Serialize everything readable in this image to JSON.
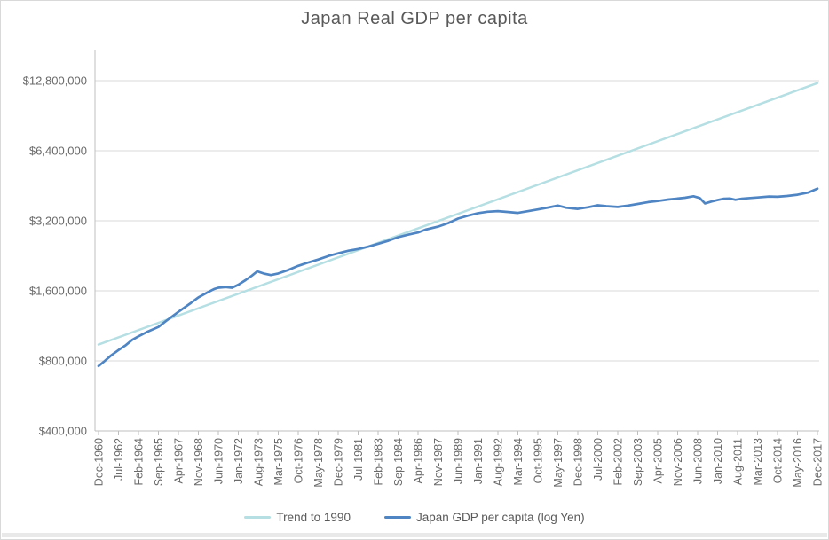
{
  "chart_data": {
    "type": "line",
    "title": "Japan Real GDP per capita",
    "y_axis": {
      "scale": "log2",
      "unit": "$",
      "ticks": [
        {
          "value": 400000,
          "label": "$400,000"
        },
        {
          "value": 800000,
          "label": "$800,000"
        },
        {
          "value": 1600000,
          "label": "$1,600,000"
        },
        {
          "value": 3200000,
          "label": "$3,200,000"
        },
        {
          "value": 6400000,
          "label": "$6,400,000"
        },
        {
          "value": 12800000,
          "label": "$12,800,000"
        }
      ],
      "range": [
        400000,
        17000000
      ],
      "grid": true
    },
    "x_axis": {
      "range": [
        "Dec-1960",
        "Dec-2017"
      ],
      "label_interval_months": 19,
      "total_months": 684,
      "labels": [
        "Dec-1960",
        "Jul-1962",
        "Feb-1964",
        "Sep-1965",
        "Apr-1967",
        "Nov-1968",
        "Jun-1970",
        "Jan-1972",
        "Aug-1973",
        "Mar-1975",
        "Oct-1976",
        "May-1978",
        "Dec-1979",
        "Jul-1981",
        "Feb-1983",
        "Sep-1984",
        "Apr-1986",
        "Nov-1987",
        "Jun-1989",
        "Jan-1991",
        "Aug-1992",
        "Mar-1994",
        "Oct-1995",
        "May-1997",
        "Dec-1998",
        "Jul-2000",
        "Feb-2002",
        "Sep-2003",
        "Apr-2005",
        "Nov-2006",
        "Jun-2008",
        "Jan-2010",
        "Aug-2011",
        "Mar-2013",
        "Oct-2014",
        "May-2016",
        "Dec-2017"
      ]
    },
    "legend_position": "bottom",
    "series": [
      {
        "name": "Trend to 1990",
        "color": "#b5dfe3",
        "shape": "log-linear",
        "points": [
          {
            "month": 0,
            "value": 940000
          },
          {
            "month": 684,
            "value": 12500000
          }
        ]
      },
      {
        "name": "Japan GDP per capita (log Yen)",
        "color": "#4f85c3",
        "shape": "poly",
        "points": [
          {
            "month": 0,
            "value": 760000
          },
          {
            "month": 6,
            "value": 800000
          },
          {
            "month": 12,
            "value": 845000
          },
          {
            "month": 19,
            "value": 890000
          },
          {
            "month": 26,
            "value": 935000
          },
          {
            "month": 32,
            "value": 985000
          },
          {
            "month": 38,
            "value": 1020000
          },
          {
            "month": 46,
            "value": 1065000
          },
          {
            "month": 57,
            "value": 1120000
          },
          {
            "month": 64,
            "value": 1185000
          },
          {
            "month": 76,
            "value": 1300000
          },
          {
            "month": 88,
            "value": 1420000
          },
          {
            "month": 95,
            "value": 1500000
          },
          {
            "month": 103,
            "value": 1570000
          },
          {
            "month": 110,
            "value": 1630000
          },
          {
            "month": 114,
            "value": 1650000
          },
          {
            "month": 121,
            "value": 1660000
          },
          {
            "month": 127,
            "value": 1650000
          },
          {
            "month": 133,
            "value": 1700000
          },
          {
            "month": 140,
            "value": 1780000
          },
          {
            "month": 146,
            "value": 1860000
          },
          {
            "month": 151,
            "value": 1940000
          },
          {
            "month": 157,
            "value": 1900000
          },
          {
            "month": 164,
            "value": 1870000
          },
          {
            "month": 171,
            "value": 1900000
          },
          {
            "month": 181,
            "value": 1970000
          },
          {
            "month": 190,
            "value": 2050000
          },
          {
            "month": 200,
            "value": 2120000
          },
          {
            "month": 209,
            "value": 2180000
          },
          {
            "month": 219,
            "value": 2260000
          },
          {
            "month": 228,
            "value": 2320000
          },
          {
            "month": 238,
            "value": 2380000
          },
          {
            "month": 247,
            "value": 2420000
          },
          {
            "month": 257,
            "value": 2480000
          },
          {
            "month": 266,
            "value": 2550000
          },
          {
            "month": 276,
            "value": 2630000
          },
          {
            "month": 285,
            "value": 2720000
          },
          {
            "month": 295,
            "value": 2790000
          },
          {
            "month": 304,
            "value": 2850000
          },
          {
            "month": 311,
            "value": 2930000
          },
          {
            "month": 323,
            "value": 3020000
          },
          {
            "month": 333,
            "value": 3130000
          },
          {
            "month": 342,
            "value": 3270000
          },
          {
            "month": 352,
            "value": 3370000
          },
          {
            "month": 361,
            "value": 3450000
          },
          {
            "month": 370,
            "value": 3500000
          },
          {
            "month": 380,
            "value": 3520000
          },
          {
            "month": 390,
            "value": 3490000
          },
          {
            "month": 399,
            "value": 3460000
          },
          {
            "month": 409,
            "value": 3520000
          },
          {
            "month": 418,
            "value": 3580000
          },
          {
            "month": 428,
            "value": 3650000
          },
          {
            "month": 437,
            "value": 3720000
          },
          {
            "month": 445,
            "value": 3640000
          },
          {
            "month": 456,
            "value": 3600000
          },
          {
            "month": 466,
            "value": 3660000
          },
          {
            "month": 475,
            "value": 3730000
          },
          {
            "month": 483,
            "value": 3700000
          },
          {
            "month": 494,
            "value": 3670000
          },
          {
            "month": 504,
            "value": 3720000
          },
          {
            "month": 513,
            "value": 3780000
          },
          {
            "month": 523,
            "value": 3850000
          },
          {
            "month": 532,
            "value": 3890000
          },
          {
            "month": 542,
            "value": 3950000
          },
          {
            "month": 551,
            "value": 3990000
          },
          {
            "month": 558,
            "value": 4020000
          },
          {
            "month": 566,
            "value": 4080000
          },
          {
            "month": 572,
            "value": 4010000
          },
          {
            "month": 577,
            "value": 3800000
          },
          {
            "month": 583,
            "value": 3870000
          },
          {
            "month": 589,
            "value": 3930000
          },
          {
            "month": 595,
            "value": 3980000
          },
          {
            "month": 601,
            "value": 3990000
          },
          {
            "month": 606,
            "value": 3940000
          },
          {
            "month": 612,
            "value": 3980000
          },
          {
            "month": 620,
            "value": 4010000
          },
          {
            "month": 627,
            "value": 4030000
          },
          {
            "month": 638,
            "value": 4070000
          },
          {
            "month": 646,
            "value": 4060000
          },
          {
            "month": 655,
            "value": 4090000
          },
          {
            "month": 665,
            "value": 4140000
          },
          {
            "month": 675,
            "value": 4230000
          },
          {
            "month": 684,
            "value": 4400000
          }
        ]
      }
    ],
    "style_colors": {
      "gridline": "#d9d9d9",
      "axis": "#bfbfbf",
      "label_text": "#6a6a6a",
      "title_text": "#595959"
    }
  }
}
